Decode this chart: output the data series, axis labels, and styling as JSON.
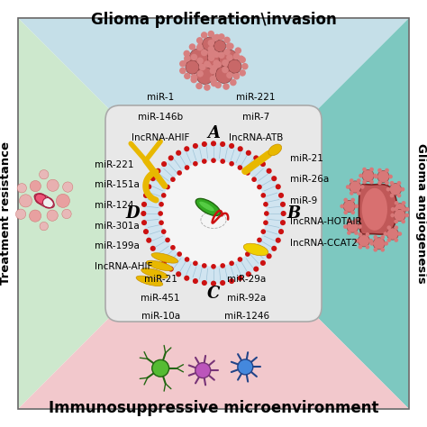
{
  "title_top": "Glioma proliferation\\invasion",
  "title_bottom": "Immunosuppressive microenvironment",
  "title_left": "Treatment resistance",
  "title_right": "Glioma angiogenesis",
  "quadrant_colors": {
    "top": "#c5dfe8",
    "left": "#cde8cd",
    "right": "#7dc8c0",
    "bottom": "#f2c8cc"
  },
  "center_color": "#e8e8e8",
  "top_labels_left": [
    "miR-1",
    "miR-146b",
    "lncRNA-AHIF"
  ],
  "top_labels_right": [
    "miR-221",
    "miR-7",
    "lncRNA-ATB"
  ],
  "left_labels": [
    "miR-221",
    "miR-151a",
    "miR-124",
    "miR-301a",
    "miR-199a",
    "lncRNA-AHIF"
  ],
  "right_labels": [
    "miR-21",
    "miR-26a",
    "miR-9",
    "lncRNA-HOTAIR",
    "lncRNA-CCAT2"
  ],
  "bottom_labels_left": [
    "miR-21",
    "miR-451",
    "miR-10a"
  ],
  "bottom_labels_right": [
    "miR-29a",
    "miR-92a",
    "miR-1246"
  ],
  "abcd_labels": [
    "A",
    "B",
    "C",
    "D"
  ],
  "background_color": "#ffffff",
  "title_fontsize": 12,
  "label_fontsize": 7.5,
  "side_title_fontsize": 9.5
}
